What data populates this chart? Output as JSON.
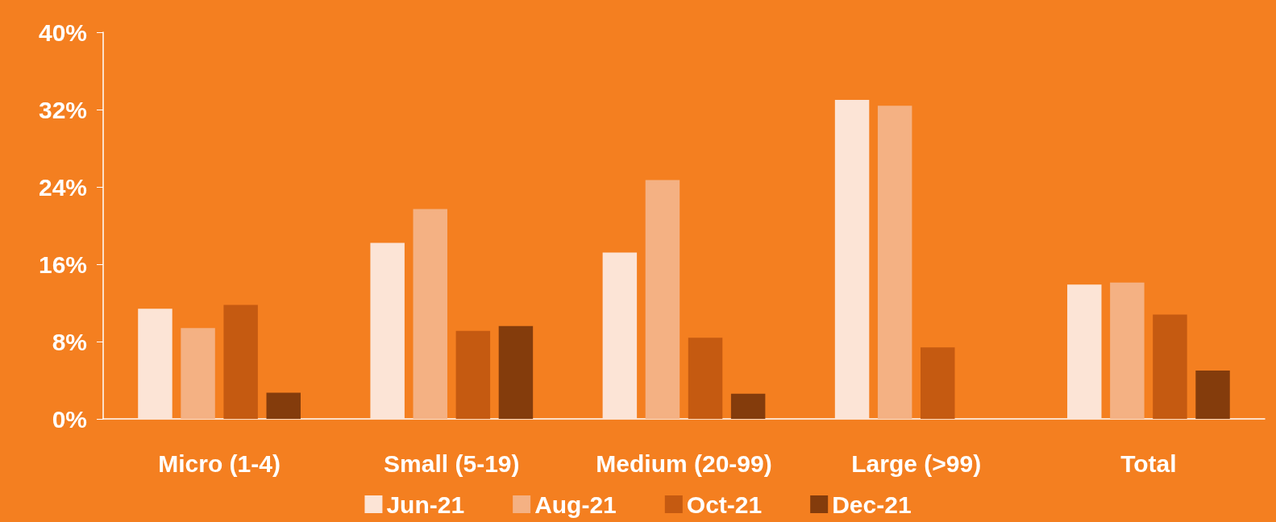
{
  "chart_data": {
    "type": "bar",
    "categories": [
      "Micro (1-4)",
      "Small (5-19)",
      "Medium (20-99)",
      "Large (>99)",
      "Total"
    ],
    "series": [
      {
        "name": "Jun-21",
        "color": "#fce4d6",
        "values": [
          11.4,
          18.2,
          17.2,
          33.0,
          13.9
        ]
      },
      {
        "name": "Aug-21",
        "color": "#f4b183",
        "values": [
          9.4,
          21.7,
          24.7,
          32.4,
          14.1
        ]
      },
      {
        "name": "Oct-21",
        "color": "#c55a11",
        "values": [
          11.8,
          9.1,
          8.4,
          7.4,
          10.8
        ]
      },
      {
        "name": "Dec-21",
        "color": "#843c0c",
        "values": [
          2.7,
          9.6,
          2.6,
          null,
          5.0
        ]
      }
    ],
    "ylim": [
      0,
      40
    ],
    "yticks": [
      {
        "value": 0,
        "label": "0%"
      },
      {
        "value": 8,
        "label": "8%"
      },
      {
        "value": 16,
        "label": "16%"
      },
      {
        "value": 24,
        "label": "24%"
      },
      {
        "value": 32,
        "label": "32%"
      },
      {
        "value": 40,
        "label": "40%"
      }
    ],
    "grid": false,
    "legend": "bottom"
  }
}
